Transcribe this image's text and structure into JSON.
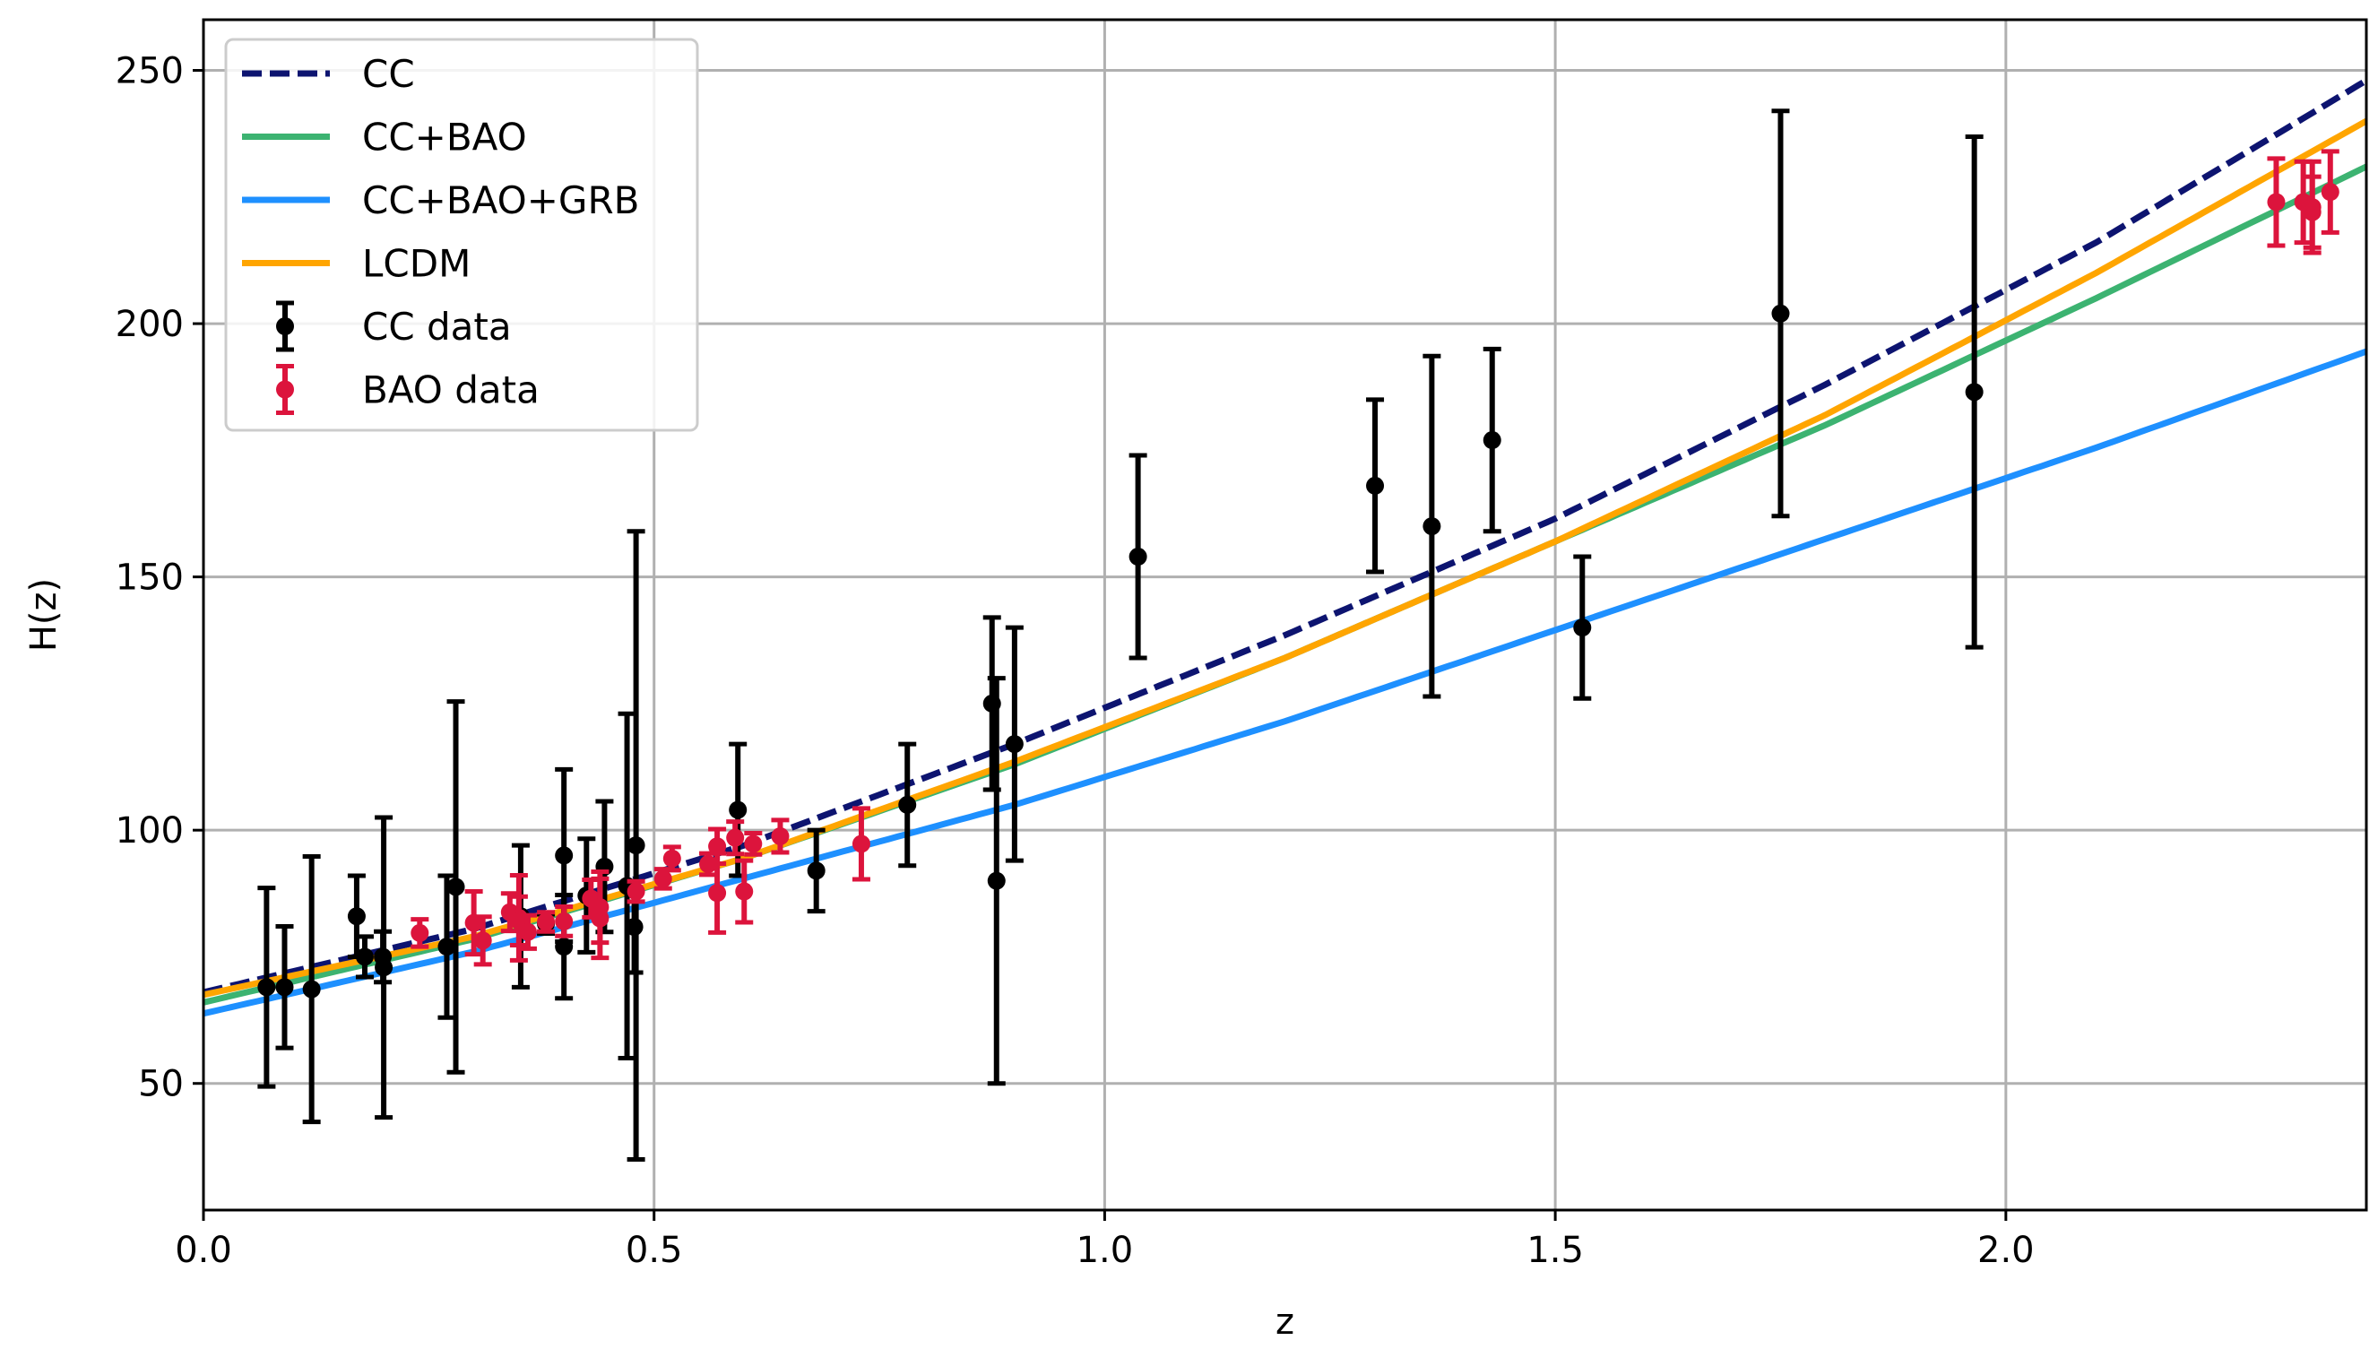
{
  "chart_data": {
    "type": "scatter",
    "xlabel": "z",
    "ylabel": "H(z)",
    "xlim": [
      0.0,
      2.4
    ],
    "ylim": [
      25,
      260
    ],
    "xticks": [
      0.0,
      0.5,
      1.0,
      1.5,
      2.0
    ],
    "xtick_labels": [
      "0.0",
      "0.5",
      "1.0",
      "1.5",
      "2.0"
    ],
    "yticks": [
      50,
      100,
      150,
      200,
      250
    ],
    "ytick_labels": [
      "50",
      "100",
      "150",
      "200",
      "250"
    ],
    "grid": true,
    "legend_position": "top-left",
    "legend": [
      {
        "label": "CC",
        "kind": "line",
        "style": "dashed",
        "color": "#0d1470"
      },
      {
        "label": "CC+BAO",
        "kind": "line",
        "style": "solid",
        "color": "#3cb371"
      },
      {
        "label": "CC+BAO+GRB",
        "kind": "line",
        "style": "solid",
        "color": "#1e90ff"
      },
      {
        "label": "LCDM",
        "kind": "line",
        "style": "solid",
        "color": "#ffa500"
      },
      {
        "label": "CC data",
        "kind": "errorbar",
        "color": "#000000"
      },
      {
        "label": "BAO data",
        "kind": "errorbar",
        "color": "#dc143c"
      }
    ],
    "curves": [
      {
        "name": "CC",
        "color": "#0d1470",
        "dashed": true,
        "x": [
          0.0,
          0.3,
          0.6,
          0.9,
          1.2,
          1.5,
          1.8,
          2.1,
          2.4
        ],
        "y": [
          68.0,
          80.5,
          97.0,
          117.0,
          138.5,
          161.5,
          188.0,
          216.0,
          248.0
        ]
      },
      {
        "name": "CC+BAO",
        "color": "#3cb371",
        "dashed": false,
        "x": [
          0.0,
          0.3,
          0.6,
          0.9,
          1.2,
          1.5,
          1.8,
          2.1,
          2.4
        ],
        "y": [
          66.0,
          78.5,
          94.5,
          113.0,
          134.0,
          157.0,
          180.0,
          205.0,
          231.0
        ]
      },
      {
        "name": "CC+BAO+GRB",
        "color": "#1e90ff",
        "dashed": false,
        "x": [
          0.0,
          0.3,
          0.6,
          0.9,
          1.2,
          1.5,
          1.8,
          2.1,
          2.4
        ],
        "y": [
          63.8,
          76.0,
          90.5,
          105.0,
          121.5,
          139.5,
          157.5,
          175.5,
          194.5
        ]
      },
      {
        "name": "LCDM",
        "color": "#ffa500",
        "dashed": false,
        "x": [
          0.0,
          0.3,
          0.6,
          0.9,
          1.2,
          1.5,
          1.8,
          2.1,
          2.4
        ],
        "y": [
          67.5,
          79.0,
          94.5,
          113.5,
          134.0,
          157.0,
          182.0,
          210.0,
          240.0
        ]
      }
    ],
    "series": [
      {
        "name": "CC data",
        "color": "#000000",
        "x": [
          0.07,
          0.09,
          0.12,
          0.17,
          0.179,
          0.199,
          0.2,
          0.27,
          0.28,
          0.352,
          0.38,
          0.4,
          0.4,
          0.425,
          0.445,
          0.47,
          0.478,
          0.48,
          0.593,
          0.68,
          0.781,
          0.875,
          0.88,
          0.9,
          1.037,
          1.3,
          1.363,
          1.43,
          1.53,
          1.75,
          1.965
        ],
        "y": [
          69,
          69,
          68.6,
          83,
          75,
          75,
          72.9,
          77,
          88.8,
          83,
          81.5,
          95,
          77,
          87.1,
          92.8,
          89,
          80.9,
          97,
          104,
          92,
          105,
          125,
          90,
          117,
          154,
          168,
          160,
          177,
          140,
          202,
          186.5
        ],
        "err": [
          19.6,
          12,
          26.2,
          8,
          4,
          5,
          29.6,
          14,
          36.6,
          14,
          1.9,
          17,
          10.2,
          11.2,
          12.9,
          34,
          9,
          62,
          13,
          8,
          12,
          17,
          40,
          23,
          20,
          17,
          33.6,
          18,
          14,
          40,
          50.4
        ]
      },
      {
        "name": "BAO data",
        "color": "#dc143c",
        "x": [
          0.24,
          0.3,
          0.31,
          0.34,
          0.35,
          0.35,
          0.36,
          0.38,
          0.4,
          0.43,
          0.44,
          0.44,
          0.48,
          0.51,
          0.52,
          0.56,
          0.57,
          0.57,
          0.59,
          0.6,
          0.61,
          0.64,
          0.73,
          2.3,
          2.33,
          2.34,
          2.34,
          2.36
        ],
        "y": [
          79.7,
          81.7,
          78.2,
          83.8,
          82.7,
          82.1,
          79.9,
          81.9,
          82.0,
          86.5,
          82.6,
          84.8,
          87.9,
          90.4,
          94.4,
          93.3,
          87.6,
          96.8,
          98.5,
          87.9,
          97.3,
          98.8,
          97.3,
          224,
          224,
          222,
          223,
          226
        ],
        "err": [
          2.7,
          6.2,
          4.7,
          3.7,
          8.4,
          4.8,
          3.3,
          1.9,
          2.9,
          3.7,
          7.8,
          7.0,
          2.0,
          1.9,
          2.3,
          2.1,
          7.8,
          3.4,
          3.2,
          6.1,
          2.1,
          3.2,
          7.0,
          8.6,
          8.0,
          7.0,
          9.0,
          8.0
        ]
      }
    ]
  }
}
